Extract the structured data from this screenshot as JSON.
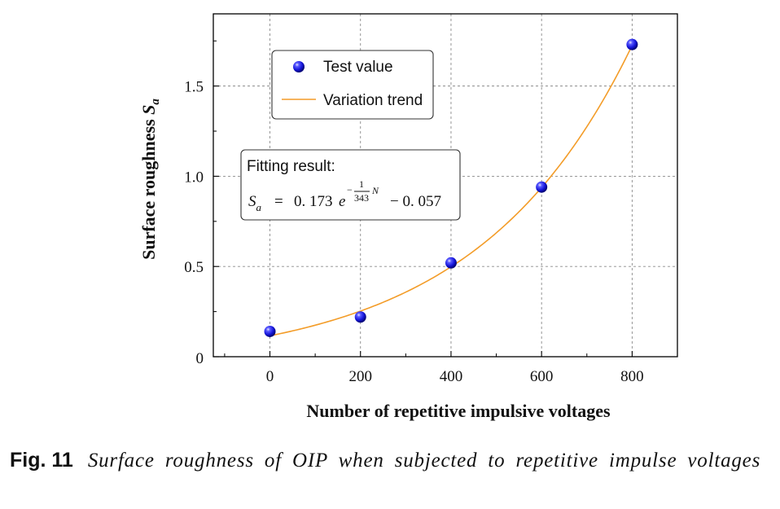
{
  "chart_data": {
    "type": "scatter",
    "title": "",
    "xlabel": "Number of repetitive impulsive voltages",
    "ylabel_main": "Surface roughness ",
    "ylabel_var": "S",
    "ylabel_sub": "a",
    "xlim": [
      -125,
      900
    ],
    "ylim": [
      0,
      1.9
    ],
    "xticks": [
      0,
      200,
      400,
      600,
      800
    ],
    "xtick_labels": [
      "0",
      "200",
      "400",
      "600",
      "800"
    ],
    "yticks": [
      0,
      0.5,
      1.0,
      1.5
    ],
    "ytick_labels": [
      "0",
      "0.5",
      "1.0",
      "1.5"
    ],
    "grid": true,
    "series": [
      {
        "name": "Test value",
        "kind": "points",
        "color": "#1a1adc",
        "x": [
          0,
          200,
          400,
          600,
          800
        ],
        "y": [
          0.14,
          0.22,
          0.52,
          0.94,
          1.73
        ]
      },
      {
        "name": "Variation trend",
        "kind": "fit-curve",
        "color": "#f39c28",
        "a": 0.173,
        "b": 343,
        "c": -0.057
      }
    ],
    "legend_position": "top-left",
    "annotation": {
      "title": "Fitting result:",
      "lhs_var": "S",
      "lhs_sub": "a",
      "equals": "=",
      "coef": "0. 173",
      "base": "e",
      "exp_sign": "−",
      "exp_num": "1",
      "exp_den": "343",
      "exp_var": "N",
      "const": "− 0. 057"
    }
  },
  "caption": {
    "number": "Fig. 11",
    "text": "Surface roughness of OIP when subjected to repetitive impulse voltages"
  }
}
